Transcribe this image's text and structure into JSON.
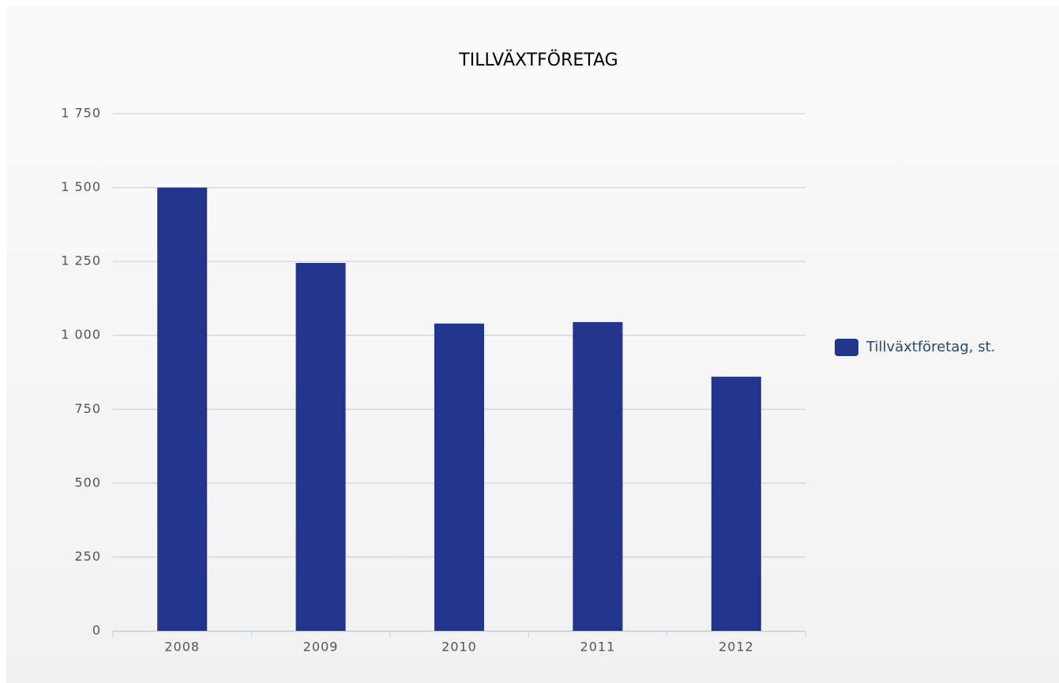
{
  "chart_data": {
    "type": "bar",
    "title": "TILLVÄXTFÖRETAG",
    "categories": [
      "2008",
      "2009",
      "2010",
      "2011",
      "2012"
    ],
    "series": [
      {
        "name": "Tillväxtföretag, st.",
        "color": "#22358c",
        "values": [
          1500,
          1245,
          1040,
          1045,
          860
        ]
      }
    ],
    "ylim": [
      0,
      1750
    ],
    "yticks": [
      0,
      250,
      500,
      750,
      {
        "value": 1000,
        "label": "1 000"
      },
      {
        "value": 1250,
        "label": "1 250"
      },
      {
        "value": 1500,
        "label": "1 500"
      },
      {
        "value": 1750,
        "label": "1 750"
      }
    ],
    "grid": true,
    "legend": "right"
  }
}
